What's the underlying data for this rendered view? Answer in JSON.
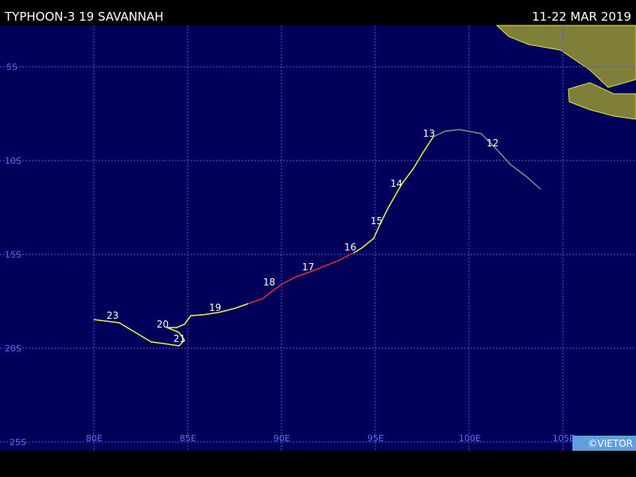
{
  "header": {
    "title": "TYPHOON-3 19 SAVANNAH",
    "date": "11-22 MAR 2019"
  },
  "grid": {
    "lat_labels": [
      "5S",
      "10S",
      "15S",
      "20S",
      "25S"
    ],
    "lon_labels": [
      "80E",
      "85E",
      "90E",
      "95E",
      "100E",
      "105E"
    ]
  },
  "track": {
    "day_labels": [
      "12",
      "13",
      "14",
      "15",
      "16",
      "17",
      "18",
      "19",
      "20",
      "21",
      "23"
    ]
  },
  "credit": "©VIETOR"
}
